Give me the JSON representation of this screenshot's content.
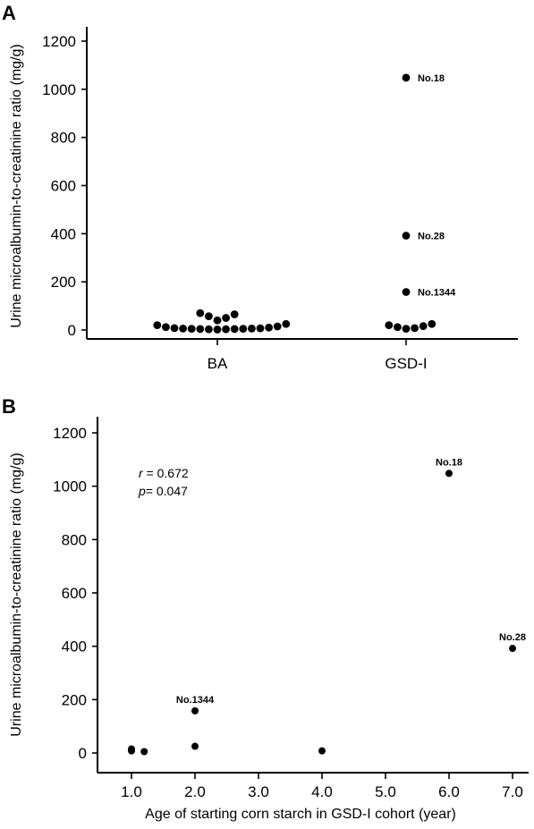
{
  "figure": {
    "panel_a_letter": "A",
    "panel_b_letter": "B"
  },
  "chart_data": [
    {
      "type": "scatter",
      "subtype": "categorical dot plot",
      "panel": "A",
      "title": "",
      "ylabel": "Urine microalbumin-to-creatinine ratio (mg/g)",
      "xlabel": "",
      "ylim": [
        -25,
        1250
      ],
      "yticks": [
        0,
        200,
        400,
        600,
        800,
        1000,
        1200
      ],
      "categories": [
        "BA",
        "GSD-I"
      ],
      "grid": false,
      "series": [
        {
          "category": "BA",
          "values": [
            2,
            3,
            3,
            4,
            4,
            5,
            5,
            6,
            6,
            7,
            8,
            10,
            12,
            15,
            20,
            25,
            40,
            50,
            57,
            65,
            70
          ]
        },
        {
          "category": "GSD-I",
          "values": [
            5,
            8,
            12,
            16,
            20,
            25,
            158,
            392,
            1048
          ]
        }
      ],
      "annotations": [
        {
          "category": "GSD-I",
          "y": 1048,
          "text": "No.18"
        },
        {
          "category": "GSD-I",
          "y": 392,
          "text": "No.28"
        },
        {
          "category": "GSD-I",
          "y": 158,
          "text": "No.1344"
        }
      ]
    },
    {
      "type": "scatter",
      "panel": "B",
      "title": "",
      "xlabel": "Age of starting corn starch in GSD-I cohort (year)",
      "ylabel": "Urine microalbumin-to-creatinine ratio (mg/g)",
      "xlim": [
        0.7,
        7.3
      ],
      "ylim": [
        -25,
        1250
      ],
      "xticks": [
        1.0,
        2.0,
        3.0,
        4.0,
        5.0,
        6.0,
        7.0
      ],
      "xtick_labels": [
        "1.0",
        "2.0",
        "3.0",
        "4.0",
        "5.0",
        "6.0",
        "7.0"
      ],
      "yticks": [
        0,
        200,
        400,
        600,
        800,
        1000,
        1200
      ],
      "grid": false,
      "points": [
        {
          "x": 1.0,
          "y": 15
        },
        {
          "x": 1.0,
          "y": 8
        },
        {
          "x": 1.2,
          "y": 5
        },
        {
          "x": 2.0,
          "y": 158,
          "label": "No.1344"
        },
        {
          "x": 2.0,
          "y": 25
        },
        {
          "x": 4.0,
          "y": 8
        },
        {
          "x": 6.0,
          "y": 1048,
          "label": "No.18"
        },
        {
          "x": 7.0,
          "y": 392,
          "label": "No.28"
        }
      ],
      "stats": {
        "r_symbol": "r",
        "r_text": " = 0.672",
        "p_symbol": "p",
        "p_text": "= 0.047"
      }
    }
  ]
}
